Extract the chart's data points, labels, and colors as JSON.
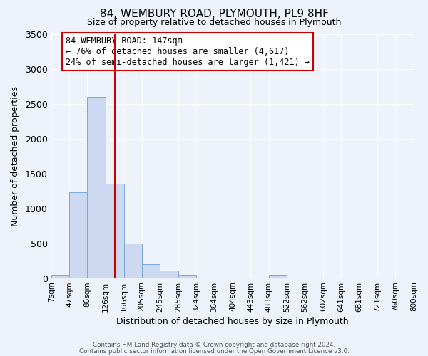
{
  "title": "84, WEMBURY ROAD, PLYMOUTH, PL9 8HF",
  "subtitle": "Size of property relative to detached houses in Plymouth",
  "xlabel": "Distribution of detached houses by size in Plymouth",
  "ylabel": "Number of detached properties",
  "bar_color": "#ccd9f0",
  "bar_edge_color": "#7aa8d8",
  "background_color": "#eef2fb",
  "grid_color": "#ffffff",
  "vline_x": 147,
  "vline_color": "#cc0000",
  "bin_edges": [
    7,
    47,
    86,
    126,
    166,
    205,
    245,
    285,
    324,
    364,
    404,
    443,
    483,
    522,
    562,
    602,
    641,
    681,
    721,
    760,
    800
  ],
  "bin_labels": [
    "7sqm",
    "47sqm",
    "86sqm",
    "126sqm",
    "166sqm",
    "205sqm",
    "245sqm",
    "285sqm",
    "324sqm",
    "364sqm",
    "404sqm",
    "443sqm",
    "483sqm",
    "522sqm",
    "562sqm",
    "602sqm",
    "641sqm",
    "681sqm",
    "721sqm",
    "760sqm",
    "800sqm"
  ],
  "bar_heights": [
    50,
    1230,
    2600,
    1350,
    500,
    200,
    110,
    50,
    0,
    0,
    0,
    0,
    50,
    0,
    0,
    0,
    0,
    0,
    0,
    0
  ],
  "ylim": [
    0,
    3500
  ],
  "yticks": [
    0,
    500,
    1000,
    1500,
    2000,
    2500,
    3000,
    3500
  ],
  "annotation_text": "84 WEMBURY ROAD: 147sqm\n← 76% of detached houses are smaller (4,617)\n24% of semi-detached houses are larger (1,421) →",
  "annotation_box_color": "#ffffff",
  "annotation_box_edge": "#cc0000",
  "footer_line1": "Contains HM Land Registry data © Crown copyright and database right 2024.",
  "footer_line2": "Contains public sector information licensed under the Open Government Licence v3.0."
}
